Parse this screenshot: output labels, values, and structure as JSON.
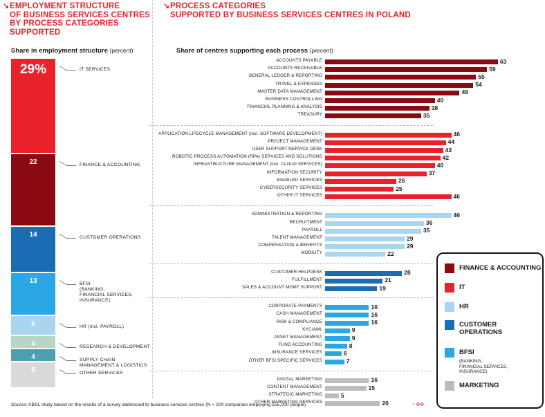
{
  "left_panel": {
    "heading_lines": [
      "EMPLOYMENT STRUCTURE",
      "OF BUSINESS SERVICES CENTRES",
      "BY PROCESS CATEGORIES",
      "SUPPORTED"
    ],
    "subtitle": "Share in employment structure",
    "subtitle_unit": "(percent)"
  },
  "right_panel": {
    "heading_lines": [
      "PROCESS CATEGORIES",
      "SUPPORTED BY BUSINESS SERVICES CENTRES IN POLAND"
    ],
    "subtitle": "Share of centres supporting each process",
    "subtitle_unit": "(percent)"
  },
  "colors": {
    "finance": "#8b0a12",
    "it": "#e8212a",
    "hr": "#a9d5f1",
    "customer": "#1b6db3",
    "bfsi": "#2aa8e6",
    "marketing": "#bcbcbc",
    "rnd": "#b8d6c4",
    "supply": "#4d9faf",
    "other": "#d9d9d9",
    "heading": "#e8212a"
  },
  "chart_data": [
    {
      "type": "bar",
      "orientation": "stacked-vertical",
      "title": "Share in employment structure (percent)",
      "categories": [
        "IT SERVICES",
        "FINANCE & ACCOUNTING",
        "CUSTOMER OPERATIONS",
        "BFSI (BANKING, FINANCIAL SERVICES, INSURANCE)",
        "HR (incl. PAYROLL)",
        "RESEARCH & DEVELOPMENT",
        "SUPPLY CHAIN MANAGEMENT & LOGISTICS",
        "OTHER SERVICES"
      ],
      "segments": [
        {
          "value_label": "29%",
          "value": 29,
          "label_lines": [
            "IT SERVICES"
          ],
          "color": "#e8212a",
          "big": true
        },
        {
          "value_label": "22",
          "value": 22,
          "label_lines": [
            "FINANCE & ACCOUNTING"
          ],
          "color": "#8b0a12"
        },
        {
          "value_label": "14",
          "value": 14,
          "label_lines": [
            "CUSTOMER OPERATIONS"
          ],
          "color": "#1b6db3"
        },
        {
          "value_label": "13",
          "value": 13,
          "label_lines": [
            "BFSI",
            "(BANKING,",
            "FINANCIAL SERVICES,",
            "INSURANCE)"
          ],
          "color": "#2aa8e6"
        },
        {
          "value_label": "6",
          "value": 6,
          "label_lines": [
            "HR (incl. PAYROLL)"
          ],
          "color": "#a9d5f1"
        },
        {
          "value_label": "4",
          "value": 4,
          "label_lines": [
            "RESEARCH & DEVELOPMENT"
          ],
          "color": "#b8d6c4"
        },
        {
          "value_label": "4",
          "value": 4,
          "label_lines": [
            "SUPPLY CHAIN",
            "MANAGEMENT & LOGISTICS"
          ],
          "color": "#4d9faf"
        },
        {
          "value_label": "8",
          "value": 8,
          "label_lines": [
            "OTHER SERVICES"
          ],
          "color": "#d9d9d9"
        }
      ]
    },
    {
      "type": "bar",
      "orientation": "horizontal",
      "title": "Share of centres supporting each process (percent)",
      "xlim": [
        0,
        63
      ],
      "groups": [
        {
          "name": "FINANCE & ACCOUNTING",
          "color": "#8b0a12",
          "items": [
            {
              "label": "ACCOUNTS PAYABLE",
              "value": 63
            },
            {
              "label": "ACCOUNTS RECEIVABLE",
              "value": 59
            },
            {
              "label": "GENERAL LEDGER & REPORTING",
              "value": 55
            },
            {
              "label": "TRAVEL & EXPENSES",
              "value": 54
            },
            {
              "label": "MASTER DATA MANAGEMENT",
              "value": 49
            },
            {
              "label": "BUSINESS CONTROLLING",
              "value": 40
            },
            {
              "label": "FINANCIAL PLANNING & ANALYSIS",
              "value": 38
            },
            {
              "label": "TREASURY",
              "value": 35
            }
          ]
        },
        {
          "name": "IT",
          "color": "#e8212a",
          "items": [
            {
              "label": "APPLICATION LIFECYCLE MANAGEMENT (incl. SOFTWARE DEVELOPMENT)",
              "value": 46
            },
            {
              "label": "PROJECT MANAGEMENT",
              "value": 44
            },
            {
              "label": "USER SUPPORT/SERVICE DESK",
              "value": 43
            },
            {
              "label": "ROBOTIC PROCESS AUTOMATION (RPA) SERVICES AND SOLUTIONS",
              "value": 42
            },
            {
              "label": "INFRASTRUCTURE MANAGEMENT (incl. CLOUD SERVICES)",
              "value": 40
            },
            {
              "label": "INFORMATION SECURITY",
              "value": 37
            },
            {
              "label": "ENABLED SERVICES",
              "value": 26
            },
            {
              "label": "CYBERSECURITY SERVICES",
              "value": 25
            },
            {
              "label": "OTHER IT SERVICES",
              "value": 46
            }
          ]
        },
        {
          "name": "HR",
          "color": "#a9d5f1",
          "items": [
            {
              "label": "ADMINISTRATION & REPORTING",
              "value": 46
            },
            {
              "label": "RECRUITMENT",
              "value": 36
            },
            {
              "label": "PAYROLL",
              "value": 35
            },
            {
              "label": "TALENT MANAGEMENT",
              "value": 29
            },
            {
              "label": "COMPENSATION & BENEFITS",
              "value": 29
            },
            {
              "label": "MOBILITY",
              "value": 22
            }
          ]
        },
        {
          "name": "CUSTOMER OPERATIONS",
          "color": "#1b6db3",
          "items": [
            {
              "label": "CUSTOMER HELPDESK",
              "value": 28
            },
            {
              "label": "FULFILLMENT",
              "value": 21
            },
            {
              "label": "SALES & ACCOUNT MGMT SUPPORT",
              "value": 19
            }
          ]
        },
        {
          "name": "BFSI",
          "color": "#2aa8e6",
          "items": [
            {
              "label": "CORPORATE PAYMENTS",
              "value": 16
            },
            {
              "label": "CASH MANAGEMENT",
              "value": 16
            },
            {
              "label": "RISK & COMPLIANCE",
              "value": 16
            },
            {
              "label": "KYC/AML",
              "value": 9
            },
            {
              "label": "ASSET MANAGEMENT",
              "value": 9
            },
            {
              "label": "FUND ACCOUNTING",
              "value": 8
            },
            {
              "label": "INSURANCE SERVICES",
              "value": 6
            },
            {
              "label": "OTHER BFSI SPECIFIC SERVICES",
              "value": 7
            }
          ]
        },
        {
          "name": "MARKETING",
          "color": "#bcbcbc",
          "items": [
            {
              "label": "DIGITAL MARKETING",
              "value": 16
            },
            {
              "label": "CONTENT MANAGEMENT",
              "value": 15
            },
            {
              "label": "STRATEGIC MARKETING",
              "value": 5
            },
            {
              "label": "OTHER MARKETING SERVICES",
              "value": 20
            }
          ]
        }
      ]
    }
  ],
  "legend": [
    {
      "label_lines": [
        "FINANCE & ACCOUNTING"
      ],
      "color": "#8b0a12"
    },
    {
      "label_lines": [
        "IT"
      ],
      "color": "#e8212a"
    },
    {
      "label_lines": [
        "HR"
      ],
      "color": "#a9d5f1"
    },
    {
      "label_lines": [
        "CUSTOMER",
        "OPERATIONS"
      ],
      "color": "#1b6db3"
    },
    {
      "label_lines": [
        "BFSI"
      ],
      "sub_lines": [
        "(BANKING,",
        "FINANCIAL SERVICES,",
        "INSURANCE)"
      ],
      "color": "#2aa8e6"
    },
    {
      "label_lines": [
        "MARKETING"
      ],
      "color": "#bcbcbc"
    }
  ],
  "source": "Source: ABSL study based on the results of a survey addressed to business services centres (N = 200 companies employing 155,000 people)"
}
